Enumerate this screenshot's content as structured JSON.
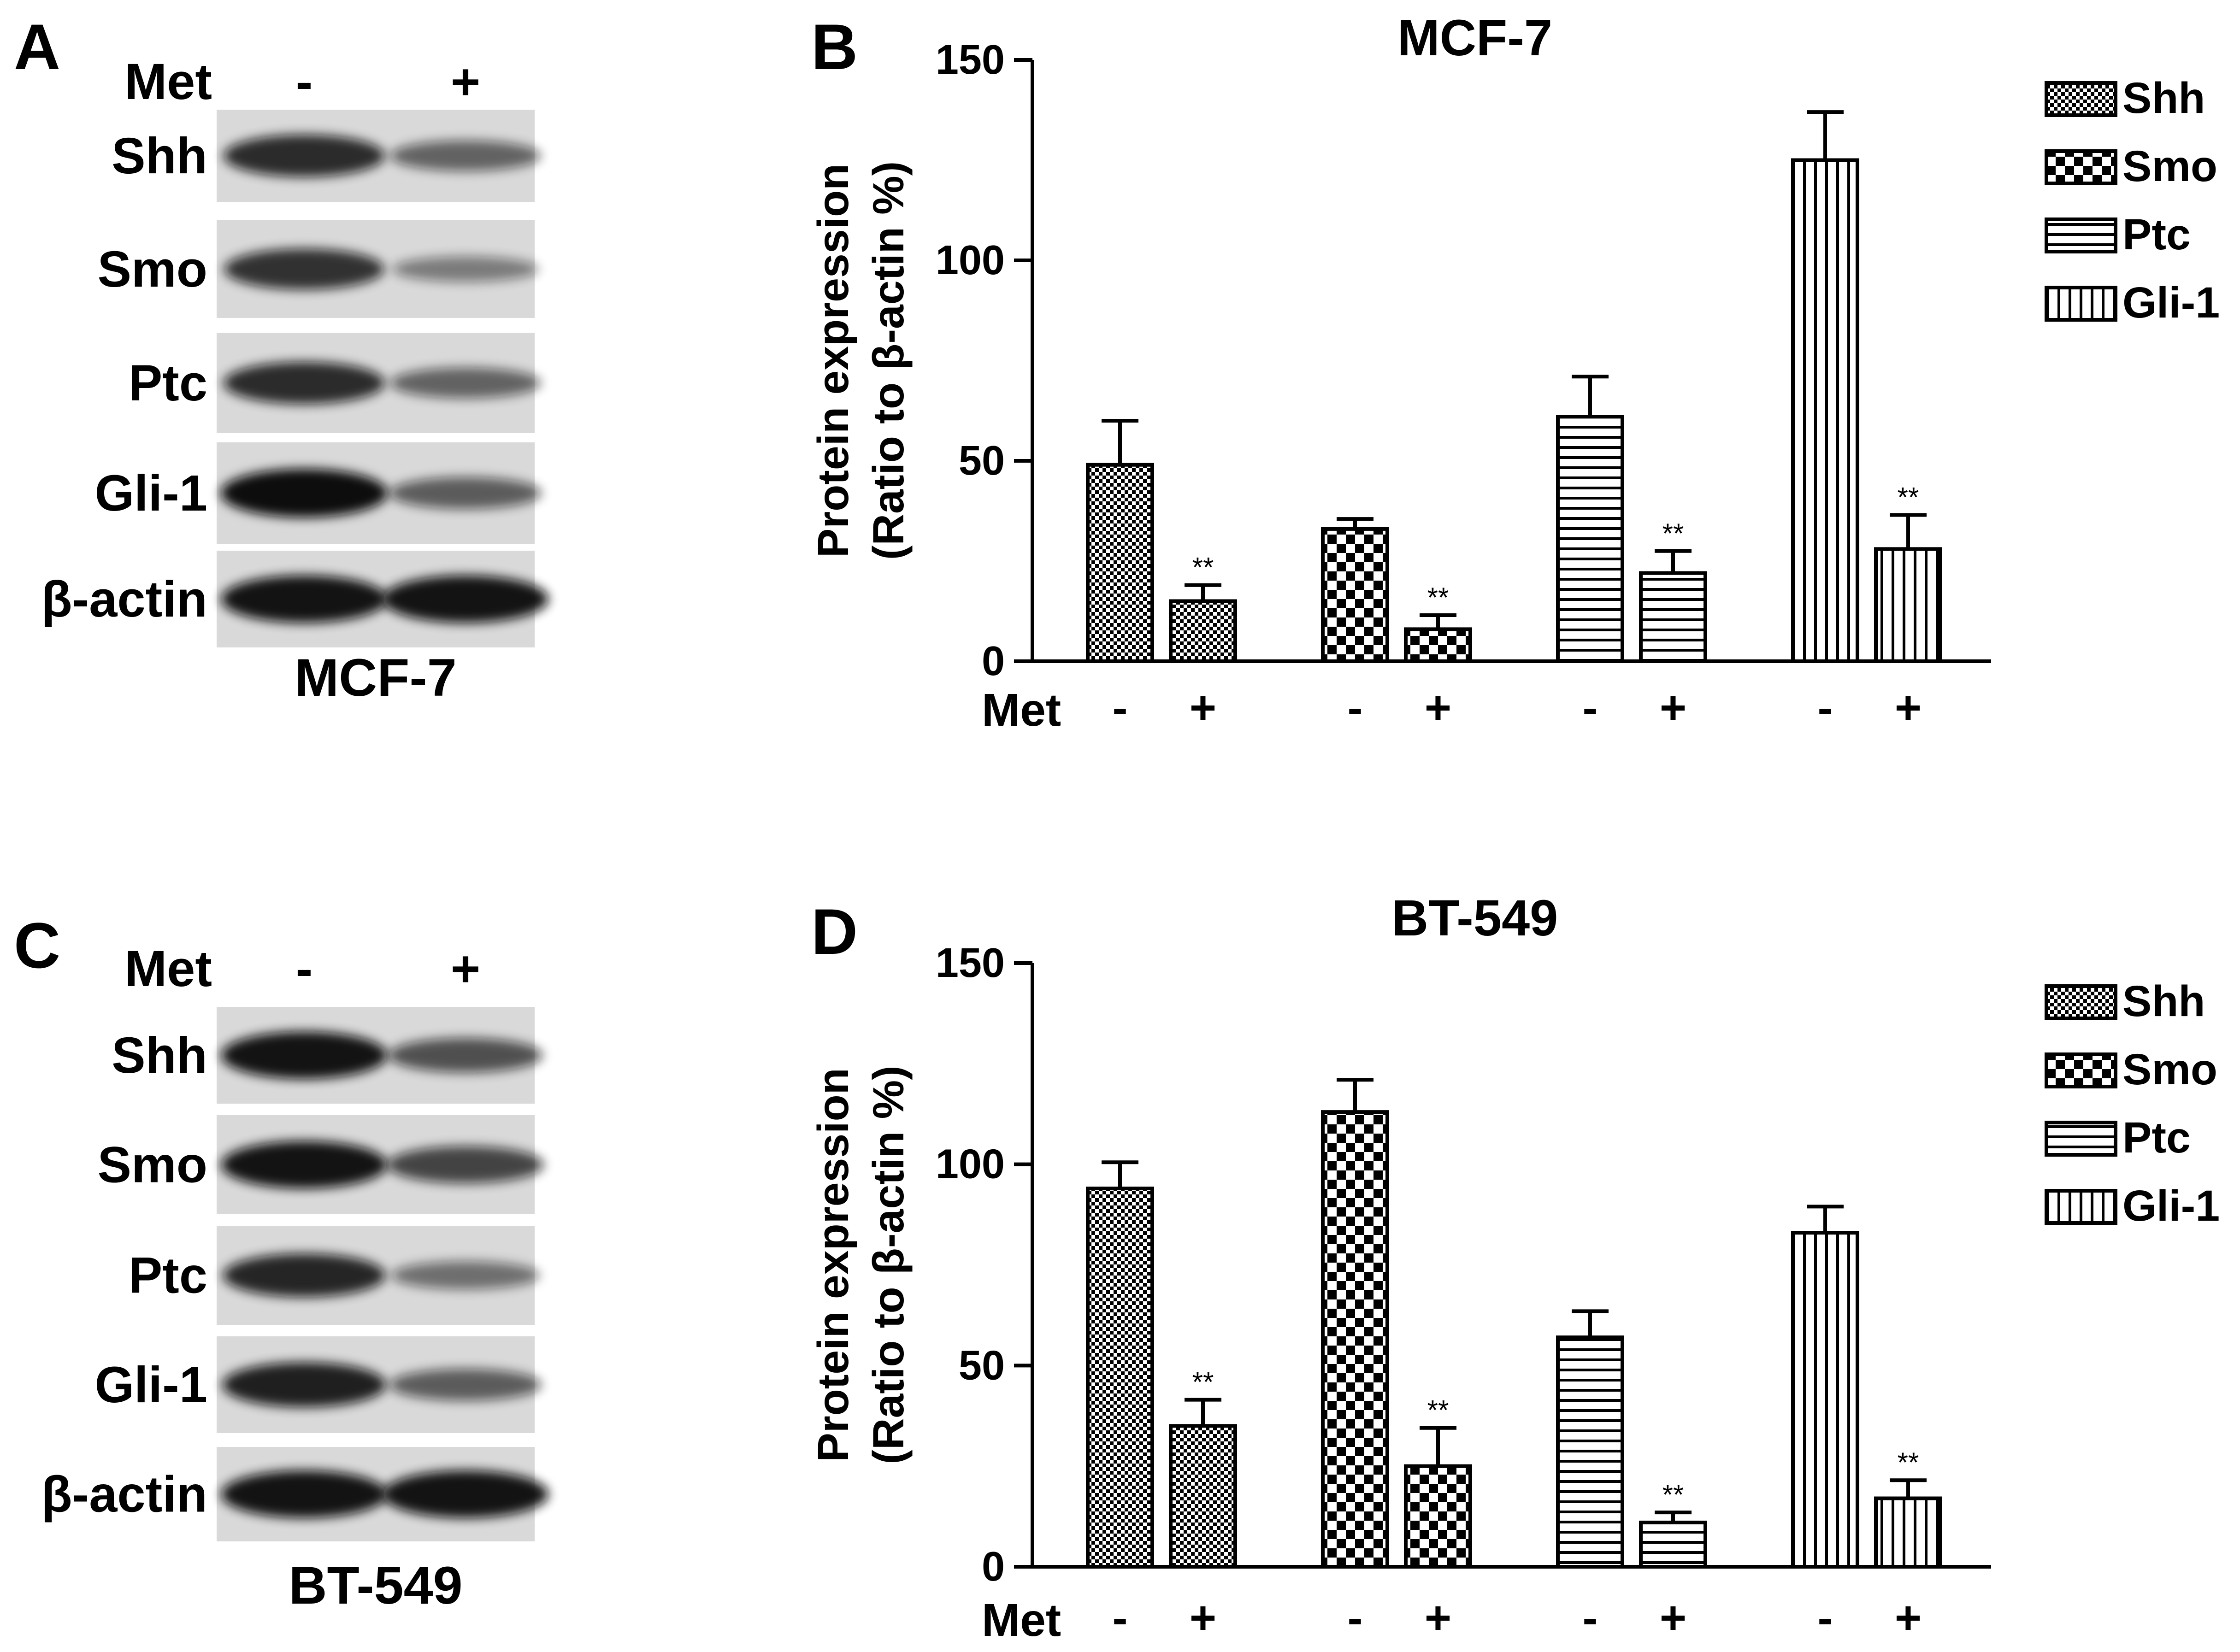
{
  "panels": {
    "A": {
      "letter": "A",
      "treatment_label": "Met",
      "lanes": [
        "-",
        "+"
      ],
      "bands": [
        "Shh",
        "Smo",
        "Ptc",
        "Gli-1",
        "β-actin"
      ],
      "cell_line": "MCF-7"
    },
    "C": {
      "letter": "C",
      "treatment_label": "Met",
      "lanes": [
        "-",
        "+"
      ],
      "bands": [
        "Shh",
        "Smo",
        "Ptc",
        "Gli-1",
        "β-actin"
      ],
      "cell_line": "BT-549"
    }
  },
  "colors": {
    "ink": "#000000",
    "background": "#ffffff",
    "blot_background": "#d9d9d9",
    "band": "#111111"
  },
  "chart_data": [
    {
      "panel_letter": "B",
      "type": "bar",
      "title": "MCF-7",
      "ylabel_line1": "Protein expression",
      "ylabel_line2": "(Ratio to β-actin %)",
      "xlabel": "Met",
      "ylim": [
        0,
        150
      ],
      "yticks": [
        0,
        50,
        100,
        150
      ],
      "legend_position": "right",
      "categories": [
        "-",
        "+"
      ],
      "significance_label": "**",
      "series": [
        {
          "name": "Shh",
          "pattern": "fine-check",
          "values": [
            49,
            15
          ],
          "errors": [
            11,
            4
          ],
          "significance": [
            "",
            "**"
          ]
        },
        {
          "name": "Smo",
          "pattern": "coarse-check",
          "values": [
            33,
            8
          ],
          "errors": [
            2.5,
            3.5
          ],
          "significance": [
            "",
            "**"
          ]
        },
        {
          "name": "Ptc",
          "pattern": "horizontal-lines",
          "values": [
            61,
            22
          ],
          "errors": [
            10,
            5.5
          ],
          "significance": [
            "",
            "**"
          ]
        },
        {
          "name": "Gli-1",
          "pattern": "vertical-lines",
          "values": [
            125,
            28
          ],
          "errors": [
            12,
            8.5
          ],
          "significance": [
            "",
            "**"
          ]
        }
      ]
    },
    {
      "panel_letter": "D",
      "type": "bar",
      "title": "BT-549",
      "ylabel_line1": "Protein expression",
      "ylabel_line2": "(Ratio to β-actin %)",
      "xlabel": "Met",
      "ylim": [
        0,
        150
      ],
      "yticks": [
        0,
        50,
        100,
        150
      ],
      "legend_position": "right",
      "categories": [
        "-",
        "+"
      ],
      "significance_label": "**",
      "series": [
        {
          "name": "Shh",
          "pattern": "fine-check",
          "values": [
            94,
            35
          ],
          "errors": [
            6.5,
            6.5
          ],
          "significance": [
            "",
            "**"
          ]
        },
        {
          "name": "Smo",
          "pattern": "coarse-check",
          "values": [
            113,
            25
          ],
          "errors": [
            8,
            9.5
          ],
          "significance": [
            "",
            "**"
          ]
        },
        {
          "name": "Ptc",
          "pattern": "horizontal-lines",
          "values": [
            57,
            11
          ],
          "errors": [
            6.5,
            2.5
          ],
          "significance": [
            "",
            "**"
          ]
        },
        {
          "name": "Gli-1",
          "pattern": "vertical-lines",
          "values": [
            83,
            17
          ],
          "errors": [
            6.5,
            4.5
          ],
          "significance": [
            "",
            "**"
          ]
        }
      ]
    }
  ]
}
